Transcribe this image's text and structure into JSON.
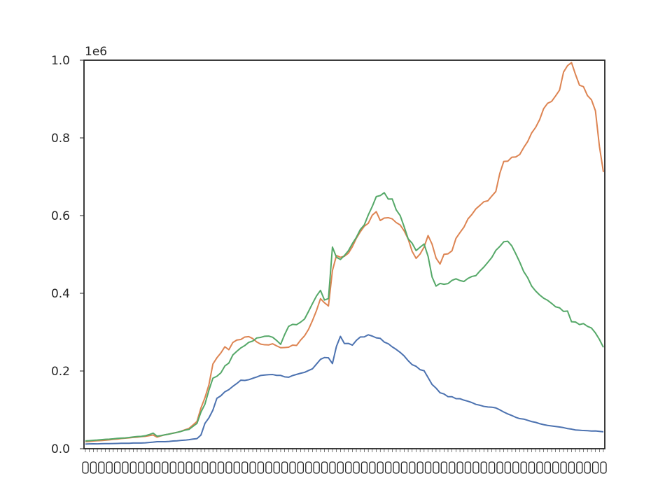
{
  "chart_data": {
    "type": "line",
    "title": "",
    "xlabel": "",
    "ylabel": "",
    "y_offset_label": "1e6",
    "ylim": [
      0,
      1000000
    ],
    "yticks": [
      {
        "value": 0,
        "label": "0.0"
      },
      {
        "value": 200000,
        "label": "0.2"
      },
      {
        "value": 400000,
        "label": "0.4"
      },
      {
        "value": 600000,
        "label": "0.6"
      },
      {
        "value": 800000,
        "label": "0.8"
      },
      {
        "value": 1000000,
        "label": "1.0"
      }
    ],
    "x_tick_labels_legible": false,
    "x_count": 131,
    "grid": false,
    "legend": "none",
    "colors": [
      "#4c72b0",
      "#dd8452",
      "#55a868"
    ],
    "series": [
      {
        "color": "#4c72b0",
        "anchors": [
          [
            0,
            12000
          ],
          [
            5,
            13000
          ],
          [
            10,
            14000
          ],
          [
            15,
            15000
          ],
          [
            18,
            18000
          ],
          [
            20,
            18000
          ],
          [
            25,
            22000
          ],
          [
            28,
            26000
          ],
          [
            29,
            35000
          ],
          [
            30,
            65000
          ],
          [
            31,
            80000
          ],
          [
            32,
            100000
          ],
          [
            33,
            130000
          ],
          [
            35,
            145000
          ],
          [
            37,
            160000
          ],
          [
            39,
            175000
          ],
          [
            41,
            178000
          ],
          [
            43,
            185000
          ],
          [
            45,
            190000
          ],
          [
            47,
            192000
          ],
          [
            49,
            188000
          ],
          [
            51,
            185000
          ],
          [
            53,
            190000
          ],
          [
            55,
            195000
          ],
          [
            57,
            205000
          ],
          [
            59,
            230000
          ],
          [
            61,
            235000
          ],
          [
            62,
            220000
          ],
          [
            63,
            265000
          ],
          [
            64,
            290000
          ],
          [
            65,
            270000
          ],
          [
            66,
            270000
          ],
          [
            67,
            268000
          ],
          [
            69,
            285000
          ],
          [
            71,
            293000
          ],
          [
            73,
            288000
          ],
          [
            75,
            275000
          ],
          [
            77,
            262000
          ],
          [
            79,
            250000
          ],
          [
            81,
            225000
          ],
          [
            83,
            210000
          ],
          [
            85,
            200000
          ],
          [
            87,
            165000
          ],
          [
            89,
            145000
          ],
          [
            91,
            135000
          ],
          [
            93,
            130000
          ],
          [
            95,
            125000
          ],
          [
            97,
            118000
          ],
          [
            99,
            112000
          ],
          [
            101,
            108000
          ],
          [
            103,
            106000
          ],
          [
            105,
            95000
          ],
          [
            107,
            85000
          ],
          [
            109,
            78000
          ],
          [
            111,
            73000
          ],
          [
            113,
            68000
          ],
          [
            115,
            62000
          ],
          [
            117,
            58000
          ],
          [
            119,
            56000
          ],
          [
            121,
            52000
          ],
          [
            123,
            48000
          ],
          [
            125,
            47000
          ],
          [
            127,
            46000
          ],
          [
            129,
            45000
          ],
          [
            130,
            44000
          ]
        ]
      },
      {
        "color": "#dd8452",
        "anchors": [
          [
            0,
            18000
          ],
          [
            5,
            22000
          ],
          [
            10,
            27000
          ],
          [
            15,
            32000
          ],
          [
            17,
            35000
          ],
          [
            18,
            30000
          ],
          [
            20,
            36000
          ],
          [
            23,
            42000
          ],
          [
            26,
            52000
          ],
          [
            28,
            70000
          ],
          [
            29,
            105000
          ],
          [
            30,
            130000
          ],
          [
            31,
            165000
          ],
          [
            32,
            220000
          ],
          [
            34,
            245000
          ],
          [
            35,
            265000
          ],
          [
            36,
            255000
          ],
          [
            37,
            275000
          ],
          [
            39,
            282000
          ],
          [
            41,
            288000
          ],
          [
            43,
            275000
          ],
          [
            45,
            268000
          ],
          [
            47,
            270000
          ],
          [
            49,
            260000
          ],
          [
            51,
            262000
          ],
          [
            53,
            268000
          ],
          [
            55,
            290000
          ],
          [
            57,
            330000
          ],
          [
            59,
            385000
          ],
          [
            60,
            375000
          ],
          [
            61,
            370000
          ],
          [
            62,
            460000
          ],
          [
            63,
            500000
          ],
          [
            64,
            490000
          ],
          [
            66,
            500000
          ],
          [
            68,
            540000
          ],
          [
            70,
            570000
          ],
          [
            72,
            600000
          ],
          [
            73,
            605000
          ],
          [
            74,
            590000
          ],
          [
            76,
            595000
          ],
          [
            78,
            585000
          ],
          [
            80,
            560000
          ],
          [
            82,
            510000
          ],
          [
            83,
            490000
          ],
          [
            85,
            520000
          ],
          [
            86,
            545000
          ],
          [
            87,
            530000
          ],
          [
            88,
            490000
          ],
          [
            89,
            480000
          ],
          [
            90,
            500000
          ],
          [
            92,
            510000
          ],
          [
            93,
            540000
          ],
          [
            95,
            570000
          ],
          [
            97,
            605000
          ],
          [
            99,
            625000
          ],
          [
            101,
            640000
          ],
          [
            103,
            665000
          ],
          [
            105,
            740000
          ],
          [
            107,
            745000
          ],
          [
            109,
            760000
          ],
          [
            111,
            790000
          ],
          [
            113,
            830000
          ],
          [
            115,
            870000
          ],
          [
            117,
            900000
          ],
          [
            119,
            930000
          ],
          [
            120,
            970000
          ],
          [
            121,
            995000
          ],
          [
            122,
            985000
          ],
          [
            123,
            960000
          ],
          [
            125,
            930000
          ],
          [
            127,
            900000
          ],
          [
            128,
            870000
          ],
          [
            129,
            780000
          ],
          [
            130,
            710000
          ]
        ]
      },
      {
        "color": "#55a868",
        "anchors": [
          [
            0,
            20000
          ],
          [
            5,
            24000
          ],
          [
            10,
            28000
          ],
          [
            15,
            33000
          ],
          [
            17,
            40000
          ],
          [
            18,
            32000
          ],
          [
            20,
            36000
          ],
          [
            23,
            42000
          ],
          [
            26,
            50000
          ],
          [
            28,
            65000
          ],
          [
            29,
            95000
          ],
          [
            30,
            115000
          ],
          [
            31,
            150000
          ],
          [
            32,
            180000
          ],
          [
            34,
            195000
          ],
          [
            35,
            215000
          ],
          [
            36,
            220000
          ],
          [
            37,
            240000
          ],
          [
            39,
            258000
          ],
          [
            41,
            272000
          ],
          [
            43,
            285000
          ],
          [
            45,
            290000
          ],
          [
            47,
            285000
          ],
          [
            49,
            270000
          ],
          [
            51,
            315000
          ],
          [
            53,
            320000
          ],
          [
            55,
            335000
          ],
          [
            57,
            375000
          ],
          [
            59,
            405000
          ],
          [
            60,
            385000
          ],
          [
            61,
            390000
          ],
          [
            62,
            520000
          ],
          [
            63,
            495000
          ],
          [
            64,
            490000
          ],
          [
            66,
            505000
          ],
          [
            68,
            545000
          ],
          [
            70,
            580000
          ],
          [
            72,
            620000
          ],
          [
            73,
            645000
          ],
          [
            75,
            655000
          ],
          [
            77,
            640000
          ],
          [
            79,
            600000
          ],
          [
            81,
            545000
          ],
          [
            83,
            515000
          ],
          [
            85,
            530000
          ],
          [
            86,
            500000
          ],
          [
            87,
            440000
          ],
          [
            88,
            420000
          ],
          [
            90,
            425000
          ],
          [
            92,
            430000
          ],
          [
            93,
            440000
          ],
          [
            95,
            430000
          ],
          [
            97,
            440000
          ],
          [
            99,
            455000
          ],
          [
            101,
            480000
          ],
          [
            103,
            510000
          ],
          [
            105,
            530000
          ],
          [
            106,
            535000
          ],
          [
            108,
            500000
          ],
          [
            110,
            460000
          ],
          [
            112,
            420000
          ],
          [
            114,
            395000
          ],
          [
            116,
            385000
          ],
          [
            118,
            365000
          ],
          [
            120,
            355000
          ],
          [
            121,
            352000
          ],
          [
            122,
            330000
          ],
          [
            124,
            320000
          ],
          [
            126,
            318000
          ],
          [
            128,
            300000
          ],
          [
            129,
            280000
          ],
          [
            130,
            262000
          ]
        ]
      }
    ]
  }
}
